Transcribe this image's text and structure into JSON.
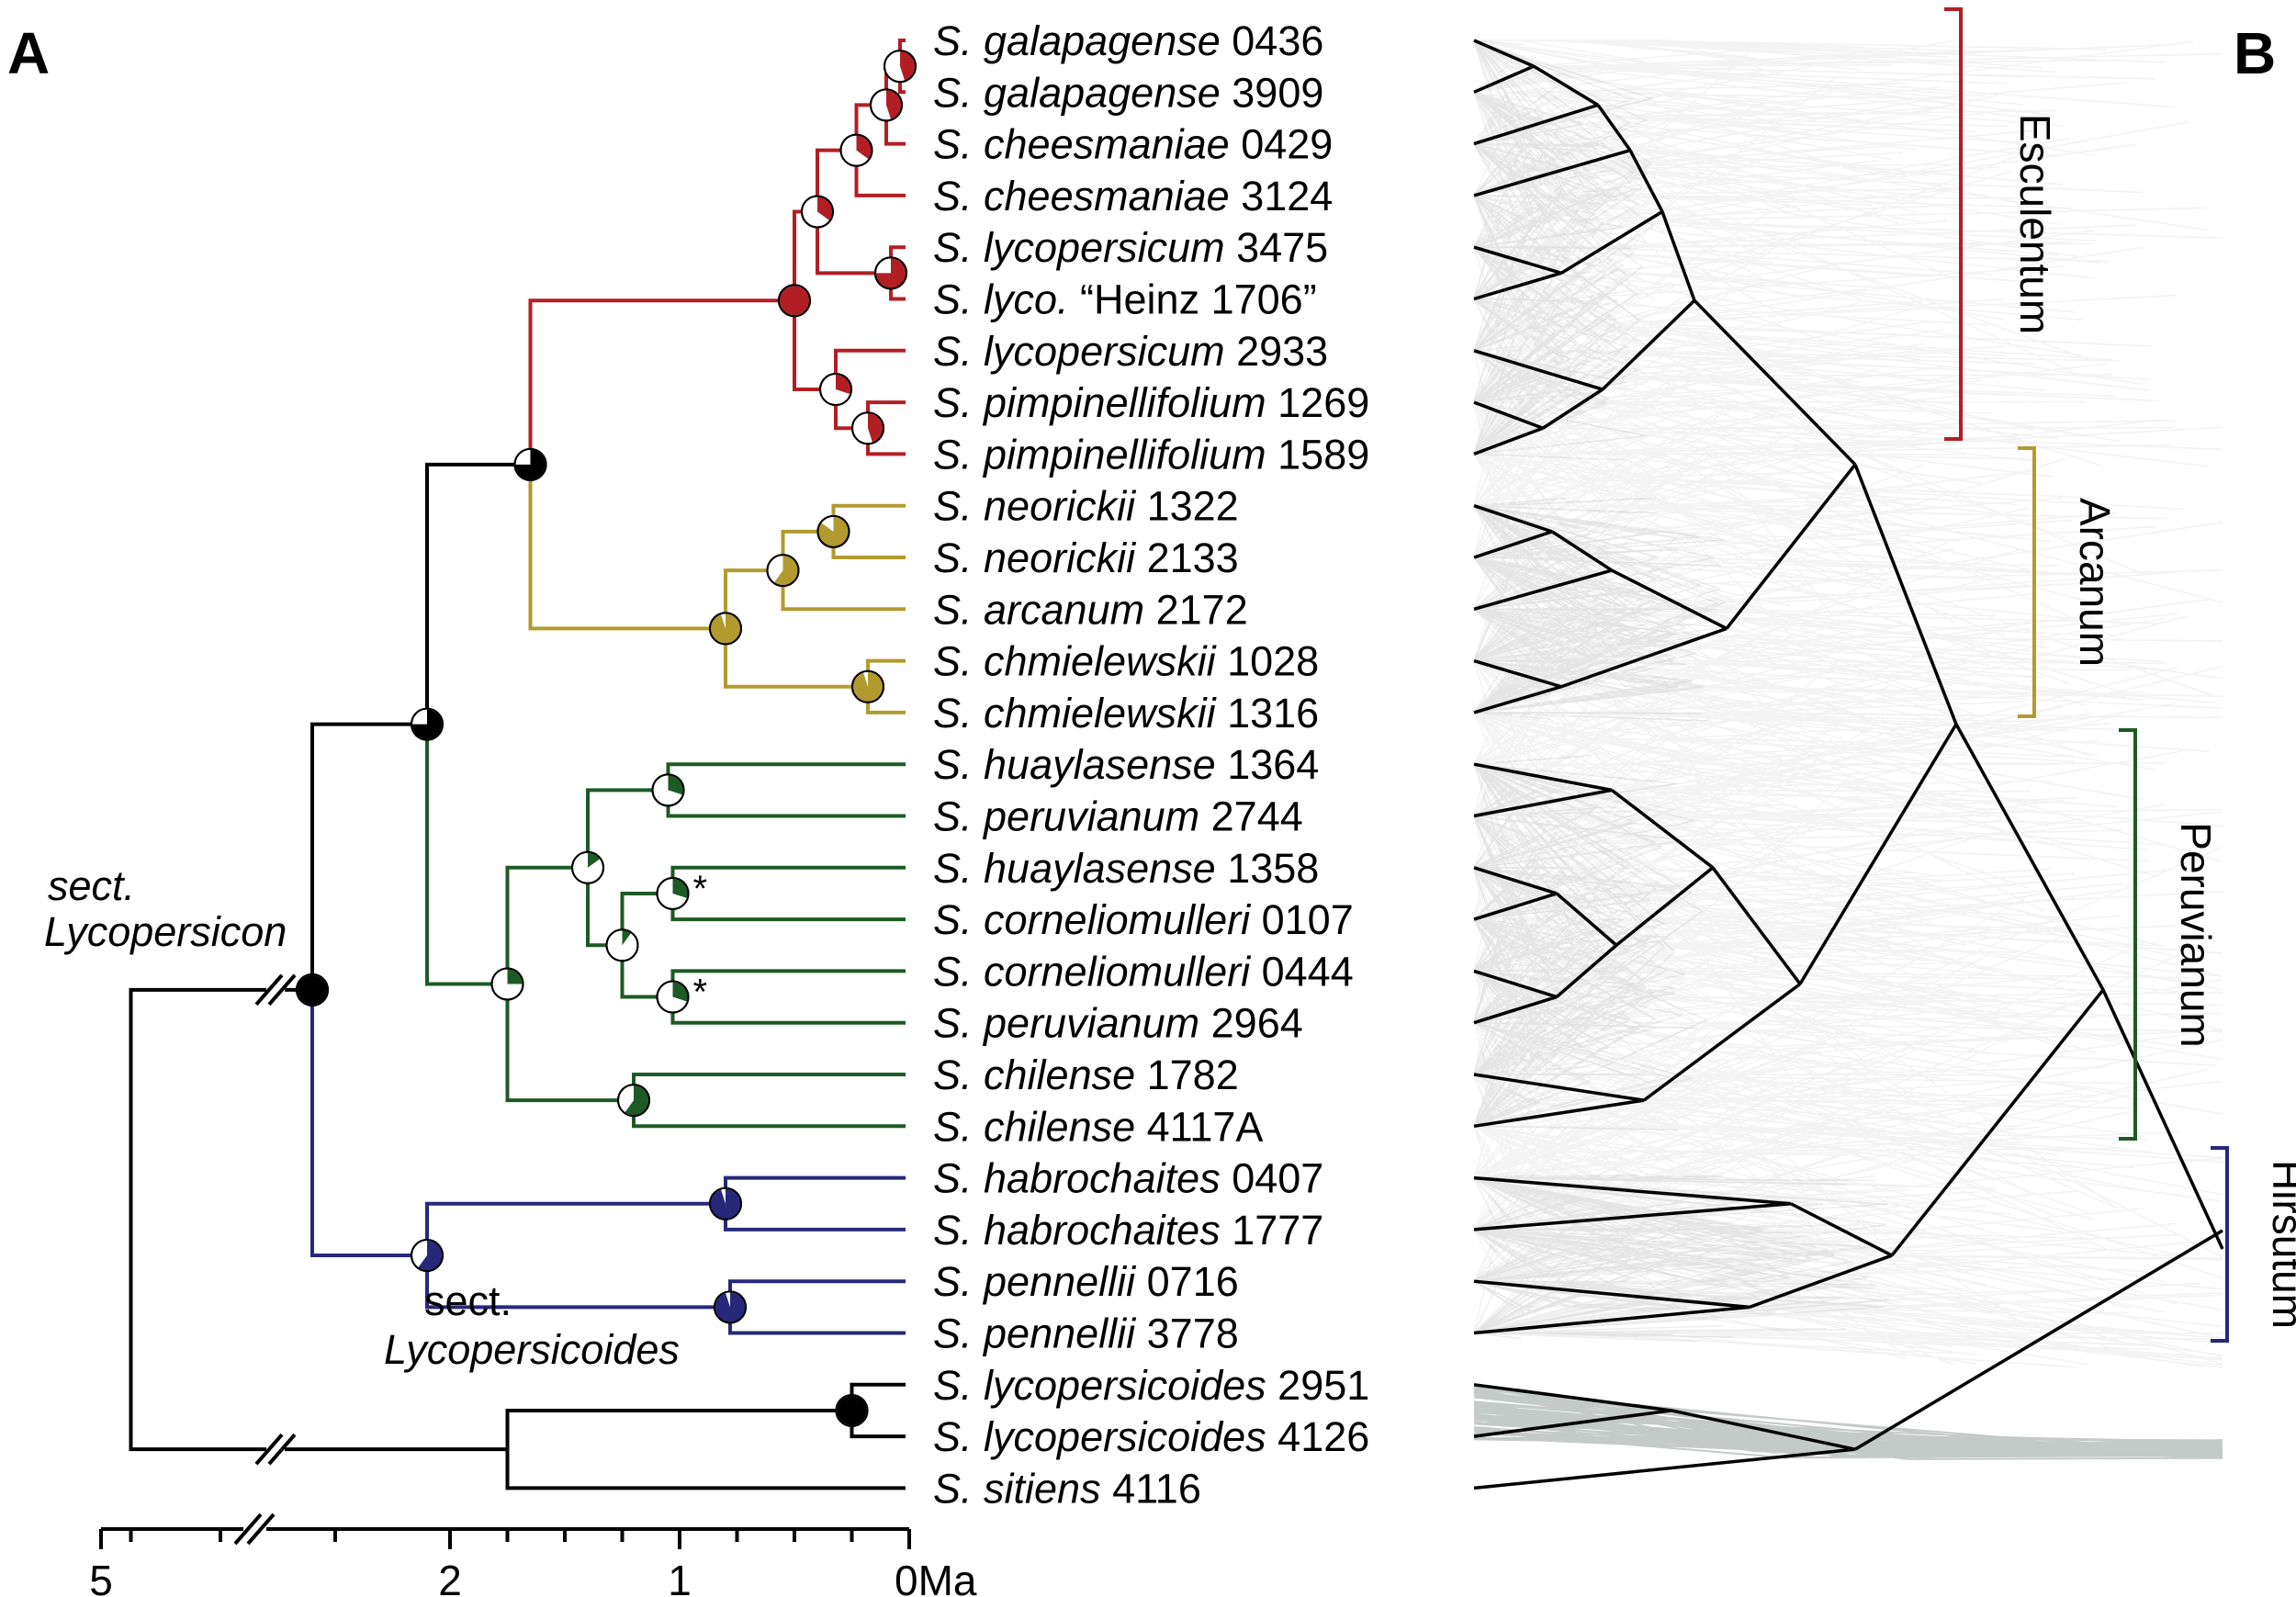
{
  "panels": {
    "a": "A",
    "b": "B"
  },
  "colors": {
    "esculentum": "#b11f24",
    "arcanum": "#b39a2f",
    "peruvianum": "#1d5a25",
    "hirsutum": "#27287a",
    "black": "#000000",
    "cloud": "#7c7c7c"
  },
  "sections": {
    "lycopersicon": [
      "sect.",
      "Lycopersicon"
    ],
    "lycopersicoides": [
      "sect.",
      "Lycopersicoides"
    ]
  },
  "axis": {
    "unit": "Ma",
    "ticks": [
      {
        "value": 5,
        "label": "5"
      },
      {
        "value": 2,
        "label": "2"
      },
      {
        "value": 1,
        "label": "1"
      },
      {
        "value": 0,
        "label": "0Ma"
      }
    ]
  },
  "clades": [
    {
      "name": "Esculentum",
      "color": "esculentum"
    },
    {
      "name": "Arcanum",
      "color": "arcanum"
    },
    {
      "name": "Peruvianum",
      "color": "peruvianum"
    },
    {
      "name": "Hirsutum",
      "color": "hirsutum"
    }
  ],
  "taxa": [
    {
      "species": "S. galapagense",
      "acc": " 0436"
    },
    {
      "species": "S. galapagense",
      "acc": " 3909"
    },
    {
      "species": "S. cheesmaniae",
      "acc": " 0429"
    },
    {
      "species": "S. cheesmaniae",
      "acc": " 3124"
    },
    {
      "species": "S. lycopersicum",
      "acc": " 3475"
    },
    {
      "species": "S. lyco.",
      "acc": " “Heinz 1706”"
    },
    {
      "species": "S. lycopersicum",
      "acc": " 2933"
    },
    {
      "species": "S. pimpinellifolium",
      "acc": " 1269"
    },
    {
      "species": "S. pimpinellifolium",
      "acc": " 1589"
    },
    {
      "species": "S. neorickii",
      "acc": " 1322"
    },
    {
      "species": "S. neorickii",
      "acc": " 2133"
    },
    {
      "species": "S. arcanum",
      "acc": " 2172"
    },
    {
      "species": "S. chmielewskii",
      "acc": " 1028"
    },
    {
      "species": "S. chmielewskii",
      "acc": " 1316"
    },
    {
      "species": "S. huaylasense",
      "acc": " 1364"
    },
    {
      "species": "S. peruvianum",
      "acc": " 2744"
    },
    {
      "species": "S. huaylasense",
      "acc": " 1358"
    },
    {
      "species": "S. corneliomulleri",
      "acc": " 0107"
    },
    {
      "species": "S. corneliomulleri",
      "acc": " 0444"
    },
    {
      "species": "S. peruvianum",
      "acc": " 2964"
    },
    {
      "species": "S. chilense",
      "acc": " 1782"
    },
    {
      "species": "S. chilense",
      "acc": " 4117A"
    },
    {
      "species": "S. habrochaites",
      "acc": " 0407"
    },
    {
      "species": "S. habrochaites",
      "acc": " 1777"
    },
    {
      "species": "S. pennellii",
      "acc": " 0716"
    },
    {
      "species": "S. pennellii",
      "acc": " 3778"
    },
    {
      "species": "S. lycopersicoides",
      "acc": " 2951"
    },
    {
      "species": "S. lycopersicoides",
      "acc": " 4126"
    },
    {
      "species": "S. sitiens",
      "acc": " 4116"
    }
  ],
  "asterisk": "*",
  "tree": {
    "n": "root",
    "t": 4.5,
    "c": "black",
    "ch": [
      {
        "n": "lyc",
        "t": 2.6,
        "c": "black",
        "pie": 1.0,
        "ch": [
          {
            "n": "elp",
            "t": 2.1,
            "c": "black",
            "pie": 0.75,
            "ch": [
              {
                "n": "ea",
                "t": 1.65,
                "c": "black",
                "pie": 0.75,
                "ch": [
                  {
                    "n": "E",
                    "t": 0.5,
                    "c": "esculentum",
                    "pie": 1.0,
                    "ch": [
                      {
                        "n": "E1",
                        "t": 0.4,
                        "c": "esculentum",
                        "pie": 0.35,
                        "ch": [
                          {
                            "n": "E2",
                            "t": 0.23,
                            "c": "esculentum",
                            "pie": 0.35,
                            "ch": [
                              {
                                "n": "E3",
                                "t": 0.1,
                                "c": "esculentum",
                                "pie": 0.45,
                                "ch": [
                                  {
                                    "n": "E4",
                                    "t": 0.04,
                                    "c": "esculentum",
                                    "pie": 0.45,
                                    "ch": [
                                      {
                                        "tip": 0
                                      },
                                      {
                                        "tip": 1
                                      }
                                    ]
                                  },
                                  {
                                    "tip": 2
                                  }
                                ]
                              },
                              {
                                "tip": 3
                              }
                            ]
                          },
                          {
                            "n": "E5",
                            "t": 0.08,
                            "c": "esculentum",
                            "pie": 0.75,
                            "ch": [
                              {
                                "tip": 4
                              },
                              {
                                "tip": 5
                              }
                            ]
                          }
                        ]
                      },
                      {
                        "n": "E6",
                        "t": 0.32,
                        "c": "esculentum",
                        "pie": 0.3,
                        "ch": [
                          {
                            "tip": 6
                          },
                          {
                            "n": "E7",
                            "t": 0.18,
                            "c": "esculentum",
                            "pie": 0.45,
                            "ch": [
                              {
                                "tip": 7
                              },
                              {
                                "tip": 8
                              }
                            ]
                          }
                        ]
                      }
                    ]
                  },
                  {
                    "n": "A",
                    "t": 0.8,
                    "c": "arcanum",
                    "pie": 0.95,
                    "ch": [
                      {
                        "n": "A1",
                        "t": 0.55,
                        "c": "arcanum",
                        "pie": 0.6,
                        "ch": [
                          {
                            "n": "A2",
                            "t": 0.33,
                            "c": "arcanum",
                            "pie": 0.85,
                            "ch": [
                              {
                                "tip": 9
                              },
                              {
                                "tip": 10
                              }
                            ]
                          },
                          {
                            "tip": 11
                          }
                        ]
                      },
                      {
                        "n": "A3",
                        "t": 0.18,
                        "c": "arcanum",
                        "pie": 0.95,
                        "ch": [
                          {
                            "tip": 12
                          },
                          {
                            "tip": 13
                          }
                        ]
                      }
                    ]
                  }
                ]
              },
              {
                "n": "P",
                "t": 1.75,
                "c": "peruvianum",
                "pie": 0.25,
                "ch": [
                  {
                    "n": "P1",
                    "t": 1.4,
                    "c": "peruvianum",
                    "pie": 0.15,
                    "ch": [
                      {
                        "n": "P2",
                        "t": 1.05,
                        "c": "peruvianum",
                        "pie": 0.3,
                        "ch": [
                          {
                            "tip": 14
                          },
                          {
                            "tip": 15
                          }
                        ]
                      },
                      {
                        "n": "P3",
                        "t": 1.25,
                        "c": "peruvianum",
                        "pie": 0.1,
                        "ch": [
                          {
                            "n": "P4",
                            "t": 1.03,
                            "c": "peruvianum",
                            "pie": 0.3,
                            "star": true,
                            "ch": [
                              {
                                "tip": 16
                              },
                              {
                                "tip": 17
                              }
                            ]
                          },
                          {
                            "n": "P5",
                            "t": 1.03,
                            "c": "peruvianum",
                            "pie": 0.3,
                            "star": true,
                            "ch": [
                              {
                                "tip": 18
                              },
                              {
                                "tip": 19
                              }
                            ]
                          }
                        ]
                      }
                    ]
                  },
                  {
                    "n": "P6",
                    "t": 1.2,
                    "c": "peruvianum",
                    "pie": 0.6,
                    "ch": [
                      {
                        "tip": 20
                      },
                      {
                        "tip": 21
                      }
                    ]
                  }
                ]
              }
            ]
          },
          {
            "n": "H",
            "t": 2.1,
            "c": "hirsutum",
            "pie": 0.6,
            "ch": [
              {
                "n": "H1",
                "t": 0.8,
                "c": "hirsutum",
                "pie": 0.95,
                "ch": [
                  {
                    "tip": 22
                  },
                  {
                    "tip": 23
                  }
                ]
              },
              {
                "n": "H2",
                "t": 0.78,
                "c": "hirsutum",
                "pie": 0.95,
                "ch": [
                  {
                    "tip": 24
                  },
                  {
                    "tip": 25
                  }
                ]
              }
            ]
          }
        ]
      },
      {
        "n": "lycoides",
        "t": 1.75,
        "c": "black",
        "ch": [
          {
            "n": "L1",
            "t": 0.25,
            "c": "black",
            "pie": 1.0,
            "ch": [
              {
                "tip": 26
              },
              {
                "tip": 27
              }
            ]
          },
          {
            "tip": 28
          }
        ]
      }
    ]
  }
}
